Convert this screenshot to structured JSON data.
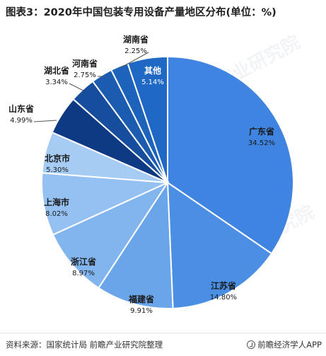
{
  "title": "图表3：2020年中国包装专用设备产量地区分布(单位：%)",
  "footer": {
    "source": "资料来源：国家统计局 前瞻产业研究院整理",
    "brand": "前瞻经济学人APP"
  },
  "colors": {
    "广东省": "#3e84e0",
    "江苏省": "#4a8fe3",
    "福建省": "#6aa5ea",
    "浙江省": "#82b4ee",
    "上海市": "#94c1f1",
    "北京市": "#a6ccf4",
    "山东省": "#0d3a82",
    "湖北省": "#164d9c",
    "河南省": "#1b5bb0",
    "湖南省": "#1e63bb",
    "其他": "#1f68c4"
  },
  "chart_data": {
    "type": "pie",
    "title": "图表3：2020年中国包装专用设备产量地区分布(单位：%)",
    "unit": "%",
    "slices": [
      {
        "label": "广东省",
        "value": 34.52,
        "value_label": "34.52%"
      },
      {
        "label": "江苏省",
        "value": 14.8,
        "value_label": "14.80%"
      },
      {
        "label": "福建省",
        "value": 9.91,
        "value_label": "9.91%"
      },
      {
        "label": "浙江省",
        "value": 8.97,
        "value_label": "8.97%"
      },
      {
        "label": "上海市",
        "value": 8.02,
        "value_label": "8.02%"
      },
      {
        "label": "北京市",
        "value": 5.3,
        "value_label": "5.30%"
      },
      {
        "label": "山东省",
        "value": 4.99,
        "value_label": "4.99%"
      },
      {
        "label": "湖北省",
        "value": 3.34,
        "value_label": "3.34%"
      },
      {
        "label": "河南省",
        "value": 2.75,
        "value_label": "2.75%"
      },
      {
        "label": "湖南省",
        "value": 2.25,
        "value_label": "2.25%"
      },
      {
        "label": "其他",
        "value": 5.14,
        "value_label": "5.14%"
      }
    ]
  }
}
